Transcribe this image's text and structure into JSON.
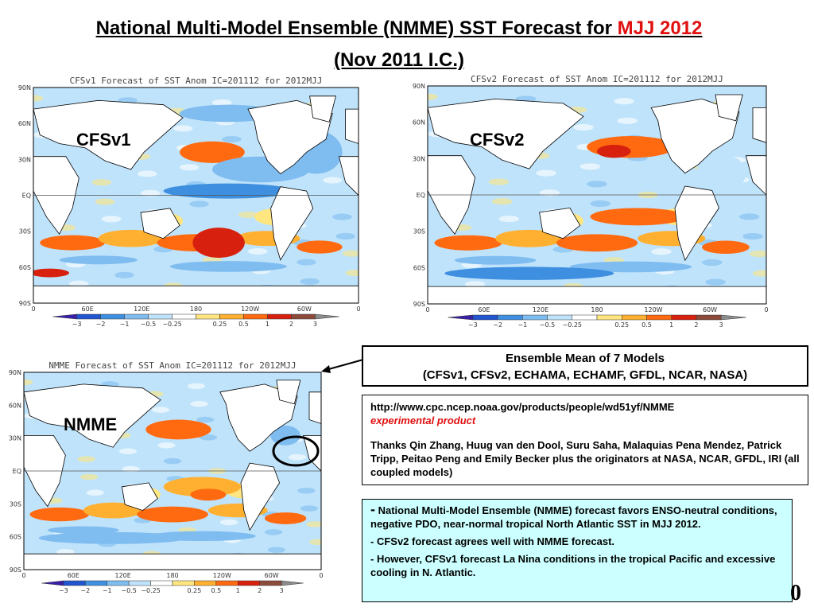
{
  "title": {
    "line1_prefix": "National Multi-Model Ensemble (NMME) SST Forecast for ",
    "line1_highlight": "MJJ 2012",
    "line2": "(Nov 2011 I.C.)"
  },
  "maps": [
    {
      "id": "cfsv1",
      "heading": "CFSv1 Forecast of SST Anom  IC=201112 for 2012MJJ",
      "label": "CFSv1"
    },
    {
      "id": "cfsv2",
      "heading": "CFSv2 Forecast of SST Anom  IC=201112 for 2012MJJ",
      "label": "CFSv2"
    },
    {
      "id": "nmme",
      "heading": "NMME Forecast of SST Anom  IC=201112 for 2012MJJ",
      "label": "NMME"
    }
  ],
  "axis": {
    "lat_ticks": [
      "90N",
      "60N",
      "30N",
      "EQ",
      "30S",
      "60S",
      "90S"
    ],
    "lon_ticks": [
      "0",
      "60E",
      "120E",
      "180",
      "120W",
      "60W",
      "0"
    ]
  },
  "colorbar": {
    "labels": [
      "−3",
      "−2",
      "−1",
      "−0.5",
      "−0.25",
      "0.25",
      "0.5",
      "1",
      "2",
      "3"
    ],
    "colors": [
      "#3a1fa8",
      "#2255d0",
      "#3f8fe0",
      "#7fbcf0",
      "#bfe3fb",
      "#ffffff",
      "#ffe680",
      "#ffb030",
      "#ff6a10",
      "#d8200e",
      "#8c4a3a",
      "#8c8c8c"
    ]
  },
  "palette": {
    "ocean_warm1": "#ffe680",
    "ocean_warm2": "#ffb030",
    "ocean_warm3": "#ff6a10",
    "ocean_warm4": "#d8200e",
    "ocean_cool1": "#bfe3fb",
    "ocean_cool2": "#7fbcf0",
    "ocean_cool3": "#3f8fe0",
    "ocean_cool4": "#2255d0",
    "land": "#ffffff",
    "title_red": "#e01010",
    "note_bg": "#ccffff"
  },
  "ensemble_box": {
    "line1": "Ensemble Mean of 7 Models",
    "line2": "(CFSv1, CFSv2, ECHAMA, ECHAMF, GFDL, NCAR, NASA)"
  },
  "credits_box": {
    "url": "http://www.cpc.ncep.noaa.gov/products/people/wd51yf/NMME",
    "experimental": "experimental product",
    "thanks": "Thanks Qin Zhang, Huug van den Dool, Suru Saha, Malaquias Pena Mendez, Patrick Tripp, Peitao Peng and Emily Becker plus the originators at NASA, NCAR, GFDL, IRI (all coupled models)"
  },
  "notes_box": {
    "bullet1_dash": "-",
    "bullet1": " National Multi-Model Ensemble (NMME) forecast favors ENSO-neutral conditions, negative PDO, near-normal  tropical North Atlantic SST  in MJJ 2012.",
    "bullet2": "- CFSv2 forecast agrees well with NMME forecast.",
    "bullet3": "- However, CFSv1 forecast La Nina conditions in the tropical Pacific and excessive cooling in N. Atlantic."
  },
  "page_number": "0"
}
